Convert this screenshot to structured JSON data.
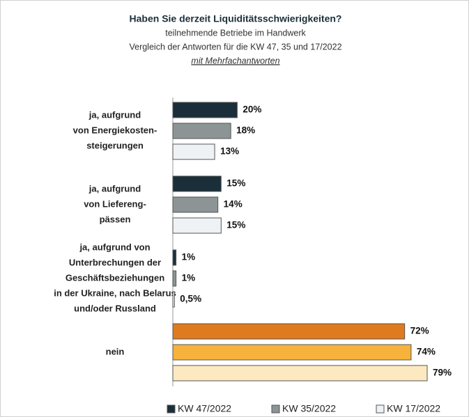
{
  "chart_data": {
    "type": "hbar",
    "title": "Haben Sie derzeit Liquiditätsschwierigkeiten?",
    "subtitle": [
      "teilnehmende Betriebe im Handwerk",
      "Vergleich der Antworten für die KW 47, 35 und 17/2022"
    ],
    "note": "mit Mehrfachantworten",
    "categories": [
      [
        "ja, aufgrund",
        "von Energiekosten-",
        "steigerungen"
      ],
      [
        "ja, aufgrund",
        "von Liefereng-",
        "pässen"
      ],
      [
        "ja, aufgrund von",
        "Unterbrechungen der",
        "Geschäftsbeziehungen",
        "in der Ukraine, nach Belarus",
        "und/oder Russland"
      ],
      [
        "nein"
      ]
    ],
    "series": [
      {
        "name": "KW 47/2022",
        "color": "#1b2f3a",
        "colors": [
          "#1b2f3a",
          "#1b2f3a",
          "#1b2f3a",
          "#e07a1f"
        ],
        "values": [
          20,
          15,
          1,
          72
        ],
        "value_labels": [
          "20%",
          "15%",
          "1%",
          "72%"
        ]
      },
      {
        "name": "KW 35/2022",
        "color": "#8c9496",
        "colors": [
          "#8c9496",
          "#8c9496",
          "#8c9496",
          "#f7b23b"
        ],
        "values": [
          18,
          14,
          1,
          74
        ],
        "value_labels": [
          "18%",
          "14%",
          "1%",
          "74%"
        ]
      },
      {
        "name": "KW 17/2022",
        "color": "#eef2f5",
        "colors": [
          "#eef2f5",
          "#eef2f5",
          "#eef2f5",
          "#fde9c1"
        ],
        "values": [
          13,
          15,
          0.5,
          79
        ],
        "value_labels": [
          "13%",
          "15%",
          "0,5%",
          "79%"
        ]
      }
    ],
    "legend": "bottom"
  }
}
